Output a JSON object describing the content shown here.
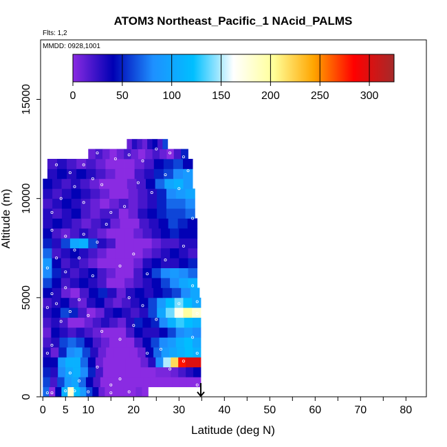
{
  "chart_data": {
    "type": "heatmap",
    "title": "ATOM3 Northeast_Pacific_1 NAcid_PALMS",
    "flights_label": "Flts: 1,2",
    "dates_label": "MMDD: 0928,1001",
    "xlabel": "Latitude (deg N)",
    "ylabel": "Altitude (m)",
    "xlim": [
      -0.5,
      84.5
    ],
    "ylim": [
      0,
      18000
    ],
    "x_ticks": [
      0,
      5,
      10,
      20,
      30,
      40,
      50,
      60,
      70,
      80
    ],
    "x_minor_ticks": [
      15,
      25,
      35,
      45,
      55,
      65,
      75
    ],
    "y_ticks": [
      0,
      5000,
      10000,
      15000
    ],
    "colorbar": {
      "ticks": [
        0,
        50,
        100,
        150,
        200,
        250,
        300
      ],
      "range": [
        0,
        325
      ],
      "colors": [
        "#8a2be2",
        "#0000b4",
        "#1e90ff",
        "#00bfff",
        "#ffffff",
        "#ffff99",
        "#ffa500",
        "#ff0000",
        "#a52a2a"
      ]
    },
    "marker": {
      "latitude": 34.8,
      "label": "arrow"
    },
    "rows": [
      {
        "y": [
          0,
          500
        ],
        "x": [
          0,
          23.2
        ],
        "v": [
          70,
          0,
          40,
          110,
          180,
          120,
          90,
          60,
          40,
          10,
          0,
          0,
          0,
          0,
          0,
          5,
          0
        ]
      },
      {
        "y": [
          500,
          1000
        ],
        "x": [
          0,
          34.8
        ],
        "v": [
          60,
          20,
          60,
          90,
          100,
          70,
          40,
          20,
          0,
          0,
          0,
          0,
          0,
          0,
          0,
          0,
          0,
          0,
          0,
          0,
          0,
          0
        ]
      },
      {
        "y": [
          1000,
          1500
        ],
        "x": [
          0,
          34.8
        ],
        "v": [
          50,
          30,
          80,
          100,
          110,
          80,
          50,
          20,
          0,
          0,
          0,
          0,
          0,
          0,
          0,
          5,
          5,
          10,
          20,
          30,
          40
        ]
      },
      {
        "y": [
          1500,
          2000
        ],
        "x": [
          0,
          34.8
        ],
        "v": [
          40,
          40,
          90,
          110,
          110,
          70,
          40,
          10,
          0,
          0,
          0,
          0,
          0,
          10,
          30,
          80,
          150,
          220,
          280,
          300,
          300
        ]
      },
      {
        "y": [
          2000,
          2500
        ],
        "x": [
          0,
          34.8
        ],
        "v": [
          30,
          10,
          50,
          80,
          90,
          60,
          30,
          10,
          0,
          0,
          0,
          0,
          10,
          40,
          70,
          90,
          100,
          110,
          120,
          110
        ]
      },
      {
        "y": [
          2500,
          3000
        ],
        "x": [
          0,
          34.8
        ],
        "v": [
          20,
          30,
          60,
          70,
          60,
          40,
          20,
          10,
          0,
          0,
          0,
          20,
          40,
          60,
          80,
          90,
          110,
          120,
          100
        ]
      },
      {
        "y": [
          3000,
          3500
        ],
        "x": [
          0,
          34.8
        ],
        "v": [
          10,
          40,
          30,
          20,
          30,
          20,
          10,
          0,
          0,
          0,
          20,
          40,
          30,
          30,
          40,
          60,
          80,
          90,
          80
        ]
      },
      {
        "y": [
          3500,
          4000
        ],
        "x": [
          0,
          34.8
        ],
        "v": [
          20,
          30,
          20,
          0,
          0,
          10,
          20,
          30,
          20,
          10,
          30,
          50,
          40,
          50,
          80,
          110,
          130,
          120,
          110
        ]
      },
      {
        "y": [
          4000,
          4500
        ],
        "x": [
          0,
          34.8
        ],
        "v": [
          30,
          40,
          60,
          50,
          20,
          0,
          10,
          30,
          40,
          30,
          20,
          30,
          60,
          100,
          140,
          170,
          200,
          180
        ]
      },
      {
        "y": [
          4500,
          5000
        ],
        "x": [
          0,
          34.8
        ],
        "v": [
          20,
          30,
          40,
          20,
          10,
          30,
          40,
          20,
          10,
          20,
          30,
          40,
          60,
          90,
          120,
          140,
          120,
          100
        ]
      },
      {
        "y": [
          5000,
          5500
        ],
        "x": [
          0,
          34.5
        ],
        "v": [
          40,
          30,
          10,
          0,
          20,
          40,
          50,
          30,
          10,
          30,
          40,
          30,
          40,
          50,
          60,
          80,
          100
        ]
      },
      {
        "y": [
          5500,
          6000
        ],
        "x": [
          0,
          34.0
        ],
        "v": [
          60,
          40,
          20,
          30,
          40,
          30,
          20,
          0,
          0,
          10,
          20,
          30,
          40,
          60,
          80,
          100,
          110
        ]
      },
      {
        "y": [
          6000,
          6500
        ],
        "x": [
          0,
          34.0
        ],
        "v": [
          80,
          50,
          30,
          20,
          30,
          40,
          20,
          10,
          0,
          0,
          20,
          40,
          60,
          80,
          90,
          80,
          70
        ]
      },
      {
        "y": [
          6500,
          7000
        ],
        "x": [
          0,
          34.0
        ],
        "v": [
          90,
          40,
          20,
          30,
          20,
          10,
          0,
          0,
          0,
          0,
          10,
          30,
          40,
          30,
          30,
          40,
          50
        ]
      },
      {
        "y": [
          7000,
          7500
        ],
        "x": [
          0,
          34.0
        ],
        "v": [
          70,
          20,
          30,
          40,
          30,
          20,
          10,
          0,
          0,
          0,
          0,
          10,
          20,
          30,
          40,
          30,
          20
        ]
      },
      {
        "y": [
          7500,
          8000
        ],
        "x": [
          0,
          34.0
        ],
        "v": [
          50,
          30,
          60,
          100,
          110,
          60,
          30,
          20,
          0,
          0,
          0,
          0,
          10,
          20,
          20,
          30,
          30
        ]
      },
      {
        "y": [
          8000,
          8500
        ],
        "x": [
          0,
          34.0
        ],
        "v": [
          40,
          20,
          10,
          20,
          30,
          20,
          10,
          0,
          0,
          0,
          10,
          20,
          30,
          40,
          50,
          40,
          40
        ]
      },
      {
        "y": [
          8500,
          9000
        ],
        "x": [
          0,
          34.0
        ],
        "v": [
          30,
          40,
          30,
          20,
          10,
          20,
          30,
          10,
          0,
          0,
          20,
          30,
          40,
          60,
          50,
          40
        ]
      },
      {
        "y": [
          9000,
          9500
        ],
        "x": [
          0,
          33.5
        ],
        "v": [
          30,
          20,
          30,
          40,
          20,
          10,
          20,
          20,
          0,
          10,
          30,
          40,
          50,
          60,
          60,
          70
        ]
      },
      {
        "y": [
          9500,
          10000
        ],
        "x": [
          0,
          33.5
        ],
        "v": [
          20,
          30,
          40,
          30,
          20,
          10,
          0,
          10,
          20,
          10,
          20,
          30,
          50,
          70,
          70,
          80
        ]
      },
      {
        "y": [
          10000,
          10500
        ],
        "x": [
          0,
          33.5
        ],
        "v": [
          30,
          20,
          30,
          40,
          30,
          20,
          10,
          0,
          0,
          10,
          20,
          30,
          50,
          80,
          90,
          100
        ]
      },
      {
        "y": [
          10500,
          11000
        ],
        "x": [
          0,
          33.0
        ],
        "v": [
          40,
          30,
          20,
          30,
          20,
          10,
          0,
          0,
          0,
          10,
          20,
          40,
          70,
          100,
          110,
          90
        ]
      },
      {
        "y": [
          11000,
          11500
        ],
        "x": [
          1.0,
          33.0
        ],
        "v": [
          30,
          40,
          30,
          40,
          30,
          20,
          10,
          0,
          0,
          20,
          30,
          50,
          60,
          80,
          90
        ]
      },
      {
        "y": [
          11500,
          12000
        ],
        "x": [
          1.0,
          33.0
        ],
        "v": [
          20,
          30,
          20,
          10,
          20,
          10,
          0,
          0,
          0,
          10,
          20,
          40,
          50,
          60,
          40
        ]
      },
      {
        "y": [
          12000,
          12500
        ],
        "x": [
          10.0,
          32.0
        ],
        "v": [
          10,
          20,
          10,
          0,
          10,
          20,
          10,
          0,
          10,
          20,
          10,
          0,
          20,
          50
        ]
      },
      {
        "y": [
          12500,
          13000
        ],
        "x": [
          18.5,
          27.5
        ],
        "v": [
          10,
          30,
          20,
          10,
          30,
          40,
          20,
          60
        ]
      }
    ],
    "samples": [
      [
        1,
        200
      ],
      [
        2,
        200
      ],
      [
        5,
        300
      ],
      [
        7,
        300
      ],
      [
        10,
        250
      ],
      [
        15,
        200
      ],
      [
        19,
        250
      ],
      [
        1,
        2200
      ],
      [
        2,
        2600
      ],
      [
        6,
        1200
      ],
      [
        8,
        800
      ],
      [
        12,
        1500
      ],
      [
        15,
        600
      ],
      [
        17,
        900
      ],
      [
        1,
        4500
      ],
      [
        3,
        4700
      ],
      [
        4,
        3800
      ],
      [
        2,
        5200
      ],
      [
        5,
        5500
      ],
      [
        6,
        4300
      ],
      [
        8,
        4900
      ],
      [
        10,
        4100
      ],
      [
        13,
        3300
      ],
      [
        17,
        2900
      ],
      [
        20,
        3600
      ],
      [
        23,
        2200
      ],
      [
        26,
        2400
      ],
      [
        30,
        4700
      ],
      [
        34,
        4200
      ],
      [
        1,
        6500
      ],
      [
        3,
        7000
      ],
      [
        5,
        6300
      ],
      [
        7,
        7400
      ],
      [
        9,
        8200
      ],
      [
        12,
        7800
      ],
      [
        14,
        8700
      ],
      [
        17,
        6600
      ],
      [
        20,
        7200
      ],
      [
        23,
        6200
      ],
      [
        27,
        6900
      ],
      [
        31,
        7600
      ],
      [
        33,
        5600
      ],
      [
        2,
        9300
      ],
      [
        4,
        10000
      ],
      [
        7,
        10600
      ],
      [
        9,
        9800
      ],
      [
        11,
        11000
      ],
      [
        13,
        10700
      ],
      [
        15,
        9300
      ],
      [
        18,
        9600
      ],
      [
        21,
        10800
      ],
      [
        24,
        10300
      ],
      [
        27,
        11200
      ],
      [
        30,
        10500
      ],
      [
        32,
        11400
      ],
      [
        3,
        11700
      ],
      [
        6,
        11300
      ],
      [
        9,
        11700
      ],
      [
        12,
        12300
      ],
      [
        16,
        12000
      ],
      [
        19,
        12200
      ],
      [
        22,
        11900
      ],
      [
        25,
        12500
      ],
      [
        28,
        12300
      ],
      [
        31,
        12100
      ],
      [
        2,
        8400
      ],
      [
        5,
        8100
      ],
      [
        8,
        7000
      ],
      [
        11,
        6100
      ],
      [
        19,
        5000
      ],
      [
        22,
        4600
      ],
      [
        25,
        3900
      ],
      [
        28,
        1400
      ],
      [
        31,
        1800
      ],
      [
        33,
        3000
      ],
      [
        34,
        2200
      ],
      [
        34,
        600
      ],
      [
        34,
        4800
      ],
      [
        33,
        9000
      ]
    ]
  }
}
